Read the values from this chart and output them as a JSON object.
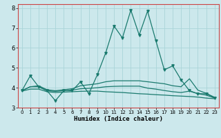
{
  "title": "",
  "xlabel": "Humidex (Indice chaleur)",
  "ylabel": "",
  "bg_color": "#cce8ec",
  "grid_color": "#aad4d8",
  "line_color": "#1a7a6e",
  "border_color": "#cc4444",
  "xlim": [
    -0.5,
    23.5
  ],
  "ylim": [
    3,
    8.2
  ],
  "yticks": [
    3,
    4,
    5,
    6,
    7,
    8
  ],
  "xticks": [
    0,
    1,
    2,
    3,
    4,
    5,
    6,
    7,
    8,
    9,
    10,
    11,
    12,
    13,
    14,
    15,
    16,
    17,
    18,
    19,
    20,
    21,
    22,
    23
  ],
  "lines": [
    {
      "x": [
        0,
        1,
        2,
        3,
        4,
        5,
        6,
        7,
        8,
        9,
        10,
        11,
        12,
        13,
        14,
        15,
        16,
        17,
        18,
        19,
        20,
        21,
        22,
        23
      ],
      "y": [
        3.85,
        4.6,
        4.05,
        3.85,
        3.35,
        3.85,
        3.85,
        4.3,
        3.7,
        4.65,
        5.75,
        7.1,
        6.5,
        7.9,
        6.65,
        7.85,
        6.35,
        4.9,
        5.1,
        4.4,
        3.85,
        3.7,
        3.7,
        3.5
      ],
      "has_markers": true
    },
    {
      "x": [
        0,
        1,
        2,
        3,
        4,
        5,
        6,
        7,
        8,
        9,
        10,
        11,
        12,
        13,
        14,
        15,
        16,
        17,
        18,
        19,
        20,
        21,
        22,
        23
      ],
      "y": [
        3.85,
        4.05,
        4.1,
        3.9,
        3.85,
        3.9,
        3.95,
        4.1,
        4.15,
        4.2,
        4.3,
        4.35,
        4.35,
        4.35,
        4.35,
        4.3,
        4.25,
        4.2,
        4.1,
        4.05,
        4.45,
        3.88,
        3.72,
        3.52
      ],
      "has_markers": false
    },
    {
      "x": [
        0,
        1,
        2,
        3,
        4,
        5,
        6,
        7,
        8,
        9,
        10,
        11,
        12,
        13,
        14,
        15,
        16,
        17,
        18,
        19,
        20,
        21,
        22,
        23
      ],
      "y": [
        3.85,
        4.05,
        4.05,
        3.85,
        3.82,
        3.85,
        3.88,
        3.95,
        3.97,
        4.0,
        4.05,
        4.07,
        4.08,
        4.08,
        4.08,
        3.98,
        3.93,
        3.86,
        3.8,
        3.76,
        3.83,
        3.7,
        3.63,
        3.48
      ],
      "has_markers": false
    },
    {
      "x": [
        0,
        1,
        2,
        3,
        4,
        5,
        6,
        7,
        8,
        9,
        10,
        11,
        12,
        13,
        14,
        15,
        16,
        17,
        18,
        19,
        20,
        21,
        22,
        23
      ],
      "y": [
        3.83,
        3.93,
        3.93,
        3.8,
        3.76,
        3.78,
        3.8,
        3.82,
        3.83,
        3.83,
        3.8,
        3.78,
        3.76,
        3.73,
        3.7,
        3.68,
        3.65,
        3.63,
        3.6,
        3.58,
        3.56,
        3.53,
        3.48,
        3.45
      ],
      "has_markers": false
    }
  ]
}
